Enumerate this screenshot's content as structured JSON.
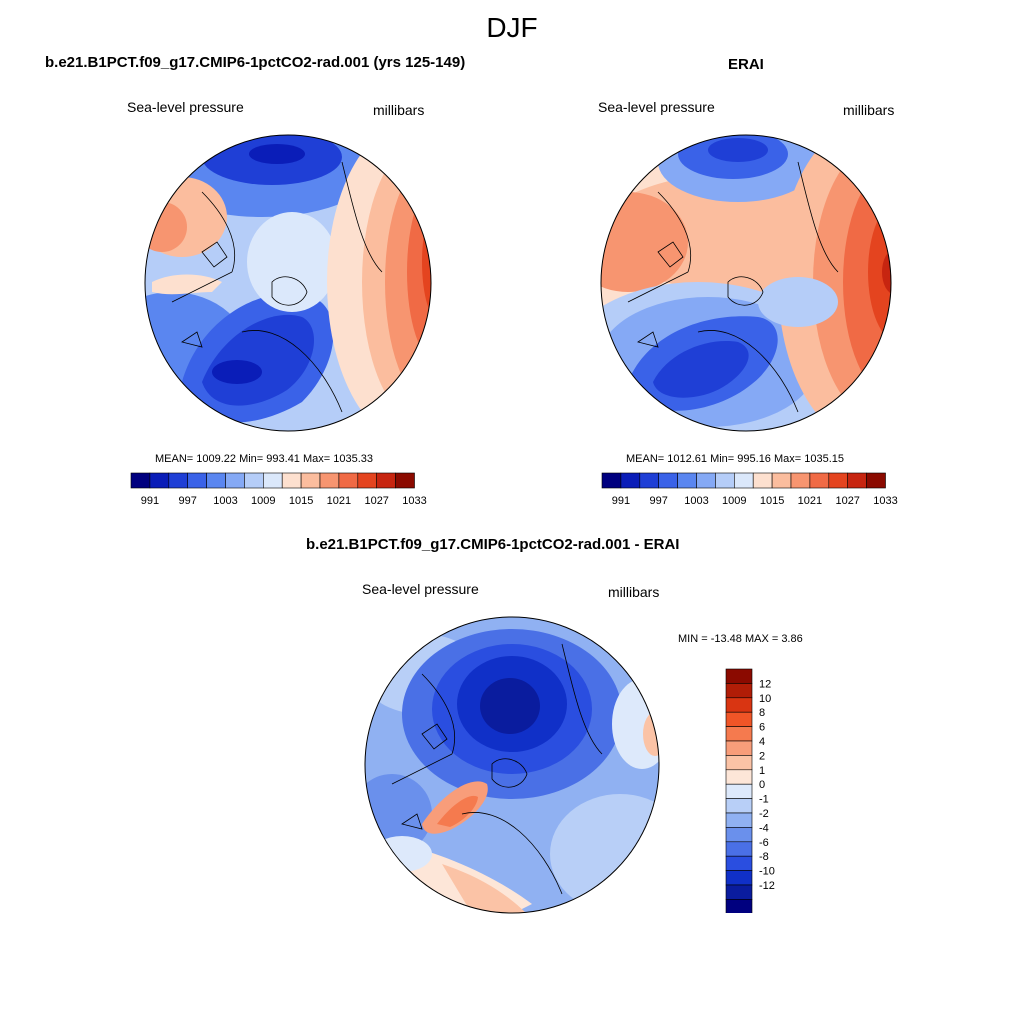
{
  "figure": {
    "season": "DJF"
  },
  "panels": {
    "model": {
      "title": "b.e21.B1PCT.f09_g17.CMIP6-1pctCO2-rad.001 (yrs 125-149)",
      "left_label": "Sea-level pressure",
      "right_label": "millibars",
      "stats": "MEAN= 1009.22  Min= 993.41  Max= 1035.33"
    },
    "obs": {
      "title": "ERAI",
      "left_label": "Sea-level pressure",
      "right_label": "millibars",
      "stats": "MEAN= 1012.61  Min= 995.16  Max= 1035.15"
    },
    "diff": {
      "title": "b.e21.B1PCT.f09_g17.CMIP6-1pctCO2-rad.001 - ERAI",
      "left_label": "Sea-level pressure",
      "right_label": "millibars",
      "stats": "MIN = -13.48 MAX =   3.86"
    }
  },
  "colorbars": {
    "slp": {
      "colors": [
        "#00007f",
        "#0a1db8",
        "#1f3fd6",
        "#3a62e8",
        "#5a86f0",
        "#85a9f5",
        "#b5cdf8",
        "#dbe8fb",
        "#fde0cf",
        "#fbbd9e",
        "#f79570",
        "#f06a45",
        "#e4441f",
        "#c72510",
        "#8b0a00"
      ],
      "labels": [
        "991",
        "997",
        "1003",
        "1009",
        "1015",
        "1021",
        "1027",
        "1033"
      ]
    },
    "diff": {
      "colors": [
        "#8b0a00",
        "#b11d07",
        "#d93512",
        "#f05527",
        "#f57a4e",
        "#f89d7a",
        "#fbc3a6",
        "#fde6d8",
        "#dde9fb",
        "#b8cff7",
        "#90b1f2",
        "#6a90ec",
        "#4a70e6",
        "#2a4ee0",
        "#1030c8",
        "#0a1c9e",
        "#00007f"
      ],
      "labels": [
        "12",
        "10",
        "8",
        "6",
        "4",
        "2",
        "1",
        "0",
        "-1",
        "-2",
        "-4",
        "-6",
        "-8",
        "-10",
        "-12"
      ]
    }
  },
  "chart_data": [
    {
      "type": "heatmap",
      "title": "b.e21.B1PCT.f09_g17.CMIP6-1pctCO2-rad.001 (yrs 125-149)",
      "variable": "Sea-level pressure",
      "units": "millibars",
      "season": "DJF",
      "projection": "polar stereographic (North Pole)",
      "mean": 1009.22,
      "min": 993.41,
      "max": 1035.33,
      "contour_levels": [
        991,
        994,
        997,
        1000,
        1003,
        1006,
        1009,
        1012,
        1015,
        1018,
        1021,
        1024,
        1027,
        1030,
        1033
      ]
    },
    {
      "type": "heatmap",
      "title": "ERAI",
      "variable": "Sea-level pressure",
      "units": "millibars",
      "season": "DJF",
      "projection": "polar stereographic (North Pole)",
      "mean": 1012.61,
      "min": 995.16,
      "max": 1035.15,
      "contour_levels": [
        991,
        994,
        997,
        1000,
        1003,
        1006,
        1009,
        1012,
        1015,
        1018,
        1021,
        1024,
        1027,
        1030,
        1033
      ]
    },
    {
      "type": "heatmap",
      "title": "b.e21.B1PCT.f09_g17.CMIP6-1pctCO2-rad.001 - ERAI",
      "variable": "Sea-level pressure",
      "units": "millibars",
      "season": "DJF",
      "projection": "polar stereographic (North Pole)",
      "min": -13.48,
      "max": 3.86,
      "contour_levels": [
        -12,
        -10,
        -8,
        -6,
        -4,
        -2,
        -1,
        0,
        1,
        2,
        4,
        6,
        8,
        10,
        12
      ]
    }
  ]
}
